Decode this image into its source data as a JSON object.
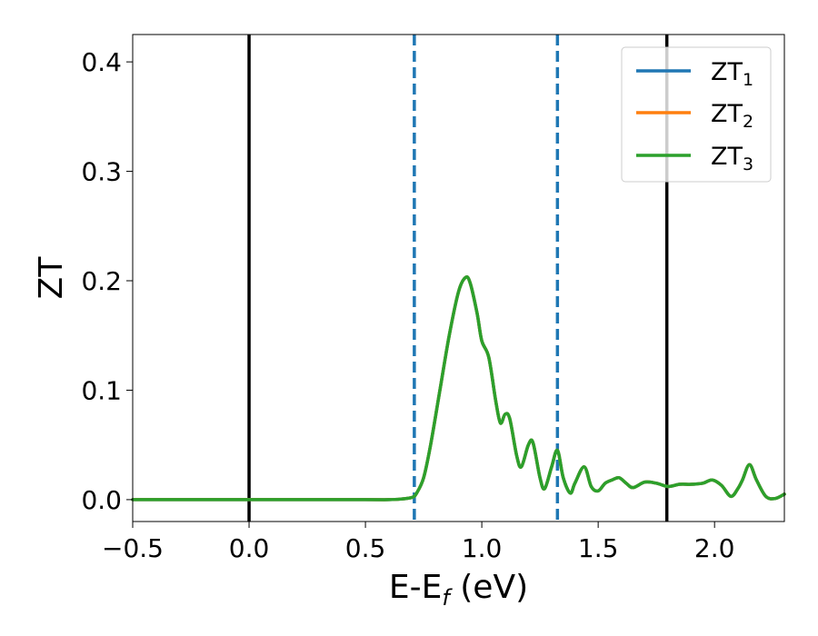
{
  "chart_data": {
    "type": "line",
    "xlabel": "E-E",
    "xlabel_sub": "f",
    "xlabel_unit": " (eV)",
    "ylabel": "ZT",
    "xlim": [
      -0.5,
      2.3
    ],
    "ylim": [
      -0.02,
      0.425
    ],
    "x_ticks": [
      -0.5,
      0.0,
      0.5,
      1.0,
      1.5,
      2.0
    ],
    "x_tick_labels": [
      "−0.5",
      "0.0",
      "0.5",
      "1.0",
      "1.5",
      "2.0"
    ],
    "y_ticks": [
      0.0,
      0.1,
      0.2,
      0.3,
      0.4
    ],
    "y_tick_labels": [
      "0.0",
      "0.1",
      "0.2",
      "0.3",
      "0.4"
    ],
    "grid": false,
    "legend_position": "top-right",
    "vertical_lines": [
      {
        "x": 0.0,
        "style": "solid",
        "color": "#000000"
      },
      {
        "x": 0.71,
        "style": "dashed",
        "color": "#1f77b4"
      },
      {
        "x": 1.325,
        "style": "dashed",
        "color": "#1f77b4"
      },
      {
        "x": 1.795,
        "style": "solid",
        "color": "#000000"
      }
    ],
    "series": [
      {
        "name": "ZT",
        "sub": "1",
        "color": "#1f77b4"
      },
      {
        "name": "ZT",
        "sub": "2",
        "color": "#ff7f0e"
      },
      {
        "name": "ZT",
        "sub": "3",
        "color": "#2ca02c"
      }
    ],
    "x": [
      -0.5,
      0.0,
      0.5,
      0.6,
      0.65,
      0.7,
      0.72,
      0.75,
      0.78,
      0.82,
      0.86,
      0.9,
      0.93,
      0.95,
      0.98,
      1.0,
      1.03,
      1.06,
      1.08,
      1.1,
      1.12,
      1.15,
      1.17,
      1.2,
      1.22,
      1.25,
      1.27,
      1.3,
      1.325,
      1.35,
      1.38,
      1.4,
      1.44,
      1.47,
      1.5,
      1.53,
      1.56,
      1.59,
      1.62,
      1.65,
      1.7,
      1.75,
      1.8,
      1.85,
      1.9,
      1.95,
      1.99,
      2.03,
      2.07,
      2.1,
      2.12,
      2.15,
      2.18,
      2.22,
      2.26,
      2.3
    ],
    "y": [
      0.0,
      0.0,
      0.0,
      0.0,
      0.0005,
      0.002,
      0.006,
      0.02,
      0.05,
      0.1,
      0.15,
      0.19,
      0.203,
      0.198,
      0.17,
      0.145,
      0.13,
      0.09,
      0.07,
      0.078,
      0.074,
      0.04,
      0.03,
      0.05,
      0.052,
      0.02,
      0.01,
      0.03,
      0.045,
      0.02,
      0.006,
      0.015,
      0.03,
      0.012,
      0.008,
      0.015,
      0.018,
      0.02,
      0.015,
      0.011,
      0.016,
      0.015,
      0.012,
      0.014,
      0.014,
      0.015,
      0.018,
      0.013,
      0.003,
      0.01,
      0.018,
      0.032,
      0.018,
      0.003,
      0.001,
      0.005
    ]
  }
}
